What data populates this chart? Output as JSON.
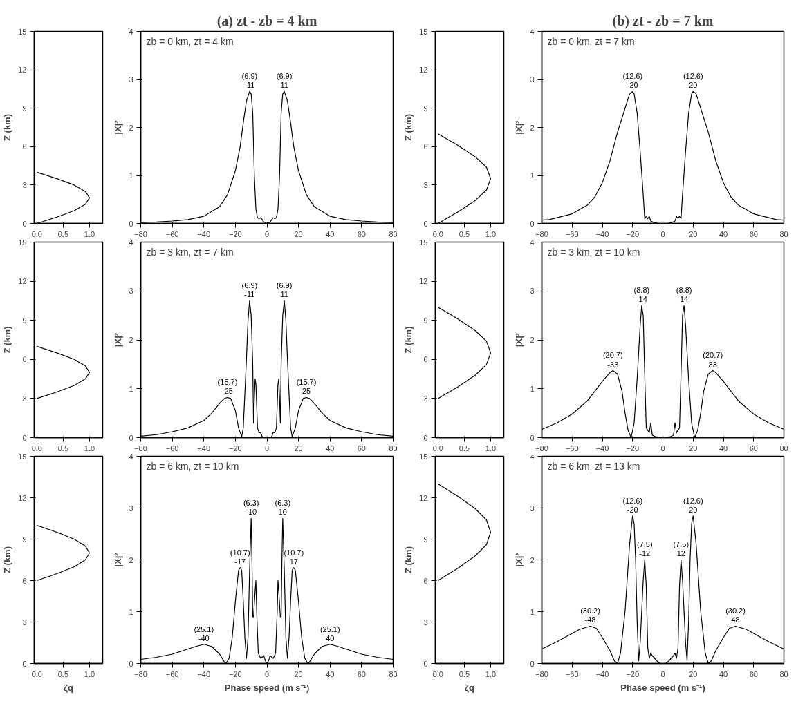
{
  "chart_data": [
    {
      "type": "line",
      "ylabel": "Z (km)",
      "xlim": [
        -0.05,
        1.25
      ],
      "ylim": [
        0,
        15
      ],
      "xticks": [
        {
          "value": 0,
          "label": "0.0"
        },
        {
          "value": 0.5,
          "label": "0.5"
        },
        {
          "value": 1,
          "label": "1.0"
        }
      ],
      "yticks": [
        0,
        3,
        6,
        9,
        12,
        15
      ],
      "series": [
        {
          "color": "#000000",
          "x": [
            0,
            0.38,
            0.71,
            0.92,
            1,
            0.92,
            0.71,
            0.38,
            0
          ],
          "values": [
            0,
            0.5,
            1,
            1.5,
            2,
            2.5,
            3,
            3.5,
            4
          ]
        }
      ]
    },
    {
      "type": "line",
      "title": "(a) zt - zb = 4 km",
      "subtitle": "zb = 0 km, zt = 4 km",
      "ylabel": "|X|²",
      "xlim": [
        -80,
        80
      ],
      "ylim": [
        0,
        4
      ],
      "xticks": [
        -80,
        -60,
        -40,
        -20,
        0,
        20,
        40,
        60,
        80
      ],
      "yticks": [
        0,
        1,
        2,
        3,
        4
      ],
      "series": [
        {
          "color": "#000000",
          "x": [
            -80,
            -70,
            -60,
            -50,
            -40,
            -30,
            -25,
            -20,
            -17,
            -15,
            -13,
            -11,
            -10,
            -9,
            -8,
            -7,
            -6,
            -5,
            -4,
            -3,
            -2,
            0,
            2,
            3,
            4,
            5,
            6,
            7,
            8,
            9,
            10,
            11,
            13,
            15,
            17,
            20,
            25,
            30,
            40,
            50,
            60,
            70,
            80
          ],
          "values": [
            0.02,
            0.03,
            0.05,
            0.08,
            0.15,
            0.35,
            0.6,
            1.1,
            1.6,
            2.1,
            2.55,
            2.75,
            2.7,
            2.3,
            1.0,
            0.3,
            0.12,
            0.1,
            0.12,
            0.08,
            0.03,
            0,
            0.03,
            0.08,
            0.12,
            0.1,
            0.12,
            0.3,
            1.0,
            2.3,
            2.7,
            2.75,
            2.55,
            2.1,
            1.6,
            1.1,
            0.6,
            0.35,
            0.15,
            0.08,
            0.05,
            0.03,
            0.02
          ]
        }
      ],
      "annotations": [
        {
          "text": "(6.9)\n-11",
          "x": -11,
          "y": 2.75
        },
        {
          "text": "(6.9)\n11",
          "x": 11,
          "y": 2.75
        }
      ]
    },
    {
      "type": "line",
      "ylabel": "Z (km)",
      "xlim": [
        -0.05,
        1.25
      ],
      "ylim": [
        0,
        15
      ],
      "xticks": [
        {
          "value": 0,
          "label": "0.0"
        },
        {
          "value": 0.5,
          "label": "0.5"
        },
        {
          "value": 1,
          "label": "1.0"
        }
      ],
      "yticks": [
        0,
        3,
        6,
        9,
        12,
        15
      ],
      "series": [
        {
          "color": "#000000",
          "x": [
            0,
            0.38,
            0.71,
            0.92,
            1,
            0.92,
            0.71,
            0.38,
            0
          ],
          "values": [
            0,
            0.9,
            1.8,
            2.6,
            3.5,
            4.4,
            5.2,
            6.1,
            7
          ]
        }
      ]
    },
    {
      "type": "line",
      "title": "(b) zt - zb = 7 km",
      "subtitle": "zb = 0 km, zt = 7 km",
      "ylabel": "|X|²",
      "xlim": [
        -80,
        80
      ],
      "ylim": [
        0,
        4
      ],
      "xticks": [
        -80,
        -60,
        -40,
        -20,
        0,
        20,
        40,
        60,
        80
      ],
      "yticks": [
        0,
        1,
        2,
        3,
        4
      ],
      "series": [
        {
          "color": "#000000",
          "x": [
            -80,
            -75,
            -70,
            -60,
            -50,
            -45,
            -40,
            -35,
            -30,
            -25,
            -22,
            -20,
            -19,
            -17,
            -15,
            -13,
            -12,
            -11,
            -10,
            -9,
            -8,
            -6,
            -3,
            0,
            3,
            6,
            8,
            9,
            10,
            11,
            12,
            13,
            15,
            17,
            19,
            20,
            22,
            25,
            30,
            35,
            40,
            45,
            50,
            60,
            70,
            75,
            80
          ],
          "values": [
            0.07,
            0.08,
            0.12,
            0.2,
            0.38,
            0.55,
            0.85,
            1.3,
            1.9,
            2.4,
            2.7,
            2.75,
            2.7,
            2.3,
            1.5,
            0.6,
            0.1,
            0.15,
            0.1,
            0.15,
            0.05,
            0.02,
            0,
            0,
            0,
            0.02,
            0.05,
            0.15,
            0.1,
            0.15,
            0.1,
            0.6,
            1.5,
            2.3,
            2.7,
            2.75,
            2.7,
            2.4,
            1.9,
            1.3,
            0.85,
            0.55,
            0.38,
            0.2,
            0.12,
            0.08,
            0.07
          ]
        }
      ],
      "annotations": [
        {
          "text": "(12.6)\n-20",
          "x": -20,
          "y": 2.75
        },
        {
          "text": "(12.6)\n20",
          "x": 20,
          "y": 2.75
        }
      ]
    },
    {
      "type": "line",
      "ylabel": "Z (km)",
      "xlim": [
        -0.05,
        1.25
      ],
      "ylim": [
        0,
        15
      ],
      "xticks": [
        {
          "value": 0,
          "label": "0.0"
        },
        {
          "value": 0.5,
          "label": "0.5"
        },
        {
          "value": 1,
          "label": "1.0"
        }
      ],
      "yticks": [
        0,
        3,
        6,
        9,
        12,
        15
      ],
      "series": [
        {
          "color": "#000000",
          "x": [
            0,
            0.38,
            0.71,
            0.92,
            1,
            0.92,
            0.71,
            0.38,
            0
          ],
          "values": [
            3,
            3.5,
            4,
            4.5,
            5,
            5.5,
            6,
            6.5,
            7
          ]
        }
      ]
    },
    {
      "type": "line",
      "subtitle": "zb = 3 km, zt = 7 km",
      "ylabel": "|X|²",
      "xlim": [
        -80,
        80
      ],
      "ylim": [
        0,
        4
      ],
      "xticks": [
        -80,
        -60,
        -40,
        -20,
        0,
        20,
        40,
        60,
        80
      ],
      "yticks": [
        0,
        1,
        2,
        3,
        4
      ],
      "series": [
        {
          "color": "#000000",
          "x": [
            -80,
            -70,
            -60,
            -50,
            -40,
            -35,
            -30,
            -27,
            -25,
            -23,
            -20,
            -18,
            -16,
            -15,
            -14,
            -13,
            -12,
            -11,
            -10,
            -9,
            -8.5,
            -8,
            -7.5,
            -7,
            -6,
            -5,
            -4,
            -3,
            -2,
            0,
            2,
            3,
            4,
            5,
            6,
            7,
            7.5,
            8,
            8.5,
            9,
            10,
            11,
            12,
            13,
            14,
            15,
            16,
            18,
            20,
            23,
            25,
            27,
            30,
            35,
            40,
            50,
            60,
            70,
            80
          ],
          "values": [
            0.03,
            0.06,
            0.12,
            0.2,
            0.35,
            0.5,
            0.7,
            0.8,
            0.82,
            0.8,
            0.55,
            0.2,
            0.02,
            0.2,
            0.9,
            1.6,
            2.4,
            2.8,
            2.5,
            1.5,
            0.3,
            0.8,
            1.2,
            1.1,
            0.2,
            0.1,
            0.1,
            0.02,
            0,
            0,
            0,
            0.02,
            0.1,
            0.1,
            0.2,
            1.1,
            1.2,
            0.8,
            0.3,
            1.5,
            2.5,
            2.8,
            2.4,
            1.6,
            0.9,
            0.2,
            0.02,
            0.2,
            0.55,
            0.8,
            0.82,
            0.8,
            0.7,
            0.5,
            0.35,
            0.2,
            0.12,
            0.06,
            0.03
          ]
        }
      ],
      "annotations": [
        {
          "text": "(6.9)\n-11",
          "x": -11,
          "y": 2.8
        },
        {
          "text": "(6.9)\n11",
          "x": 11,
          "y": 2.8
        },
        {
          "text": "(15.7)\n-25",
          "x": -25,
          "y": 0.82
        },
        {
          "text": "(15.7)\n25",
          "x": 25,
          "y": 0.82
        }
      ]
    },
    {
      "type": "line",
      "ylabel": "Z (km)",
      "xlim": [
        -0.05,
        1.25
      ],
      "ylim": [
        0,
        15
      ],
      "xticks": [
        {
          "value": 0,
          "label": "0.0"
        },
        {
          "value": 0.5,
          "label": "0.5"
        },
        {
          "value": 1,
          "label": "1.0"
        }
      ],
      "yticks": [
        0,
        3,
        6,
        9,
        12,
        15
      ],
      "series": [
        {
          "color": "#000000",
          "x": [
            0,
            0.38,
            0.71,
            0.92,
            1,
            0.92,
            0.71,
            0.38,
            0
          ],
          "values": [
            3,
            3.9,
            4.8,
            5.6,
            6.5,
            7.4,
            8.2,
            9.1,
            10
          ]
        }
      ]
    },
    {
      "type": "line",
      "subtitle": "zb = 3 km, zt = 10 km",
      "ylabel": "|X|²",
      "xlim": [
        -80,
        80
      ],
      "ylim": [
        0,
        4
      ],
      "xticks": [
        -80,
        -60,
        -40,
        -20,
        0,
        20,
        40,
        60,
        80
      ],
      "yticks": [
        0,
        1,
        2,
        3,
        4
      ],
      "series": [
        {
          "color": "#000000",
          "x": [
            -80,
            -70,
            -60,
            -50,
            -45,
            -40,
            -35,
            -33,
            -30,
            -27,
            -25,
            -23,
            -21,
            -19,
            -17,
            -15,
            -14,
            -13,
            -12,
            -11,
            -10,
            -9,
            -8,
            -7,
            -5,
            0,
            5,
            7,
            8,
            9,
            10,
            11,
            12,
            13,
            14,
            15,
            17,
            19,
            21,
            23,
            25,
            27,
            30,
            33,
            35,
            40,
            45,
            50,
            60,
            70,
            80
          ],
          "values": [
            0.17,
            0.3,
            0.48,
            0.75,
            0.95,
            1.15,
            1.33,
            1.37,
            1.3,
            0.95,
            0.5,
            0.15,
            0,
            0.3,
            1.2,
            2.3,
            2.7,
            2.5,
            1.3,
            0.2,
            0.15,
            0.1,
            0.3,
            0.05,
            0.02,
            0,
            0.02,
            0.05,
            0.3,
            0.1,
            0.15,
            0.2,
            1.3,
            2.5,
            2.7,
            2.3,
            1.2,
            0.3,
            0,
            0.15,
            0.5,
            0.95,
            1.3,
            1.37,
            1.33,
            1.15,
            0.95,
            0.75,
            0.48,
            0.3,
            0.17
          ]
        }
      ],
      "annotations": [
        {
          "text": "(8.8)\n-14",
          "x": -14,
          "y": 2.7
        },
        {
          "text": "(8.8)\n14",
          "x": 14,
          "y": 2.7
        },
        {
          "text": "(20.7)\n-33",
          "x": -33,
          "y": 1.37
        },
        {
          "text": "(20.7)\n33",
          "x": 33,
          "y": 1.37
        }
      ]
    },
    {
      "type": "line",
      "xlabel": "ζq",
      "ylabel": "Z (km)",
      "xlim": [
        -0.05,
        1.25
      ],
      "ylim": [
        0,
        15
      ],
      "xticks": [
        {
          "value": 0,
          "label": "0.0"
        },
        {
          "value": 0.5,
          "label": "0.5"
        },
        {
          "value": 1,
          "label": "1.0"
        }
      ],
      "yticks": [
        0,
        3,
        6,
        9,
        12,
        15
      ],
      "series": [
        {
          "color": "#000000",
          "x": [
            0,
            0.38,
            0.71,
            0.92,
            1,
            0.92,
            0.71,
            0.38,
            0
          ],
          "values": [
            6,
            6.5,
            7,
            7.5,
            8,
            8.5,
            9,
            9.5,
            10
          ]
        }
      ]
    },
    {
      "type": "line",
      "subtitle": "zb = 6 km, zt = 10 km",
      "xlabel": "Phase speed (m s⁻¹)",
      "ylabel": "|X|²",
      "xlim": [
        -80,
        80
      ],
      "ylim": [
        0,
        4
      ],
      "xticks": [
        -80,
        -60,
        -40,
        -20,
        0,
        20,
        40,
        60,
        80
      ],
      "yticks": [
        0,
        1,
        2,
        3,
        4
      ],
      "series": [
        {
          "color": "#000000",
          "x": [
            -80,
            -70,
            -60,
            -50,
            -45,
            -40,
            -35,
            -30,
            -27,
            -26,
            -24,
            -22,
            -20,
            -18,
            -17,
            -16,
            -15,
            -14,
            -13,
            -12,
            -11,
            -10,
            -9.5,
            -9,
            -8.5,
            -7.5,
            -7,
            -6.5,
            -5.5,
            -4,
            -2,
            -1,
            0,
            1,
            2,
            4,
            5.5,
            6.5,
            7,
            7.5,
            8.5,
            9,
            9.5,
            10,
            11,
            12,
            13,
            14,
            15,
            16,
            17,
            18,
            20,
            22,
            24,
            26,
            27,
            30,
            35,
            40,
            45,
            50,
            60,
            70,
            80
          ],
          "values": [
            0.08,
            0.12,
            0.18,
            0.28,
            0.33,
            0.37,
            0.33,
            0.18,
            0.03,
            0,
            0.1,
            0.5,
            1.2,
            1.8,
            1.85,
            1.8,
            1.2,
            0.5,
            0.1,
            0.5,
            1.8,
            2.8,
            2.0,
            0.9,
            0.9,
            1.4,
            1.6,
            1.0,
            0.2,
            0.1,
            0.15,
            0.05,
            0,
            0.05,
            0.15,
            0.1,
            0.2,
            1.0,
            1.6,
            1.4,
            0.9,
            0.9,
            2.0,
            2.8,
            1.8,
            0.5,
            0.1,
            0.5,
            1.2,
            1.8,
            1.85,
            1.8,
            1.2,
            0.5,
            0.1,
            0,
            0.03,
            0.18,
            0.33,
            0.37,
            0.33,
            0.28,
            0.18,
            0.12,
            0.08
          ]
        }
      ],
      "annotations": [
        {
          "text": "(6.3)\n-10",
          "x": -10,
          "y": 2.8
        },
        {
          "text": "(6.3)\n10",
          "x": 10,
          "y": 2.8
        },
        {
          "text": "(10.7)\n-17",
          "x": -17,
          "y": 1.85
        },
        {
          "text": "(10.7)\n17",
          "x": 17,
          "y": 1.85
        },
        {
          "text": "(25.1)\n-40",
          "x": -40,
          "y": 0.37
        },
        {
          "text": "(25.1)\n40",
          "x": 40,
          "y": 0.37
        }
      ]
    },
    {
      "type": "line",
      "xlabel": "ζq",
      "ylabel": "Z (km)",
      "xlim": [
        -0.05,
        1.25
      ],
      "ylim": [
        0,
        15
      ],
      "xticks": [
        {
          "value": 0,
          "label": "0.0"
        },
        {
          "value": 0.5,
          "label": "0.5"
        },
        {
          "value": 1,
          "label": "1.0"
        }
      ],
      "yticks": [
        0,
        3,
        6,
        9,
        12,
        15
      ],
      "series": [
        {
          "color": "#000000",
          "x": [
            0,
            0.38,
            0.71,
            0.92,
            1,
            0.92,
            0.71,
            0.38,
            0
          ],
          "values": [
            6,
            6.9,
            7.8,
            8.6,
            9.5,
            10.4,
            11.2,
            12.1,
            13
          ]
        }
      ]
    },
    {
      "type": "line",
      "subtitle": "zb = 6 km, zt = 13 km",
      "xlabel": "Phase speed (m s⁻¹)",
      "ylabel": "|X|²",
      "xlim": [
        -80,
        80
      ],
      "ylim": [
        0,
        4
      ],
      "xticks": [
        -80,
        -60,
        -40,
        -20,
        0,
        20,
        40,
        60,
        80
      ],
      "yticks": [
        0,
        1,
        2,
        3,
        4
      ],
      "series": [
        {
          "color": "#000000",
          "x": [
            -80,
            -70,
            -60,
            -55,
            -48,
            -44,
            -40,
            -35,
            -32,
            -30,
            -28,
            -25,
            -22,
            -20,
            -19,
            -18,
            -17,
            -16,
            -15,
            -13,
            -12,
            -11,
            -10,
            -9,
            -8,
            -7,
            -6,
            -4,
            -2,
            0,
            2,
            4,
            6,
            7,
            8,
            9,
            10,
            11,
            12,
            13,
            15,
            16,
            17,
            18,
            19,
            20,
            22,
            25,
            28,
            30,
            32,
            35,
            40,
            44,
            48,
            55,
            60,
            70,
            80
          ],
          "values": [
            0.28,
            0.42,
            0.58,
            0.66,
            0.72,
            0.68,
            0.5,
            0.25,
            0.05,
            0,
            0.2,
            1.0,
            2.3,
            2.85,
            2.7,
            2.0,
            0.8,
            0.05,
            0.4,
            1.6,
            2.0,
            1.5,
            0.3,
            0.1,
            0.2,
            0.15,
            0.12,
            0.05,
            0,
            0,
            0,
            0.05,
            0.12,
            0.15,
            0.2,
            0.1,
            0.3,
            1.5,
            2.0,
            1.6,
            0.4,
            0.05,
            0.8,
            2.0,
            2.7,
            2.85,
            2.3,
            1.0,
            0.2,
            0,
            0.05,
            0.25,
            0.5,
            0.68,
            0.72,
            0.66,
            0.58,
            0.42,
            0.28
          ]
        }
      ],
      "annotations": [
        {
          "text": "(12.6)\n-20",
          "x": -20,
          "y": 2.85
        },
        {
          "text": "(12.6)\n20",
          "x": 20,
          "y": 2.85
        },
        {
          "text": "(7.5)\n-12",
          "x": -12,
          "y": 2.0
        },
        {
          "text": "(7.5)\n12",
          "x": 12,
          "y": 2.0
        },
        {
          "text": "(30.2)\n-48",
          "x": -48,
          "y": 0.72
        },
        {
          "text": "(30.2)\n48",
          "x": 48,
          "y": 0.72
        }
      ]
    }
  ]
}
